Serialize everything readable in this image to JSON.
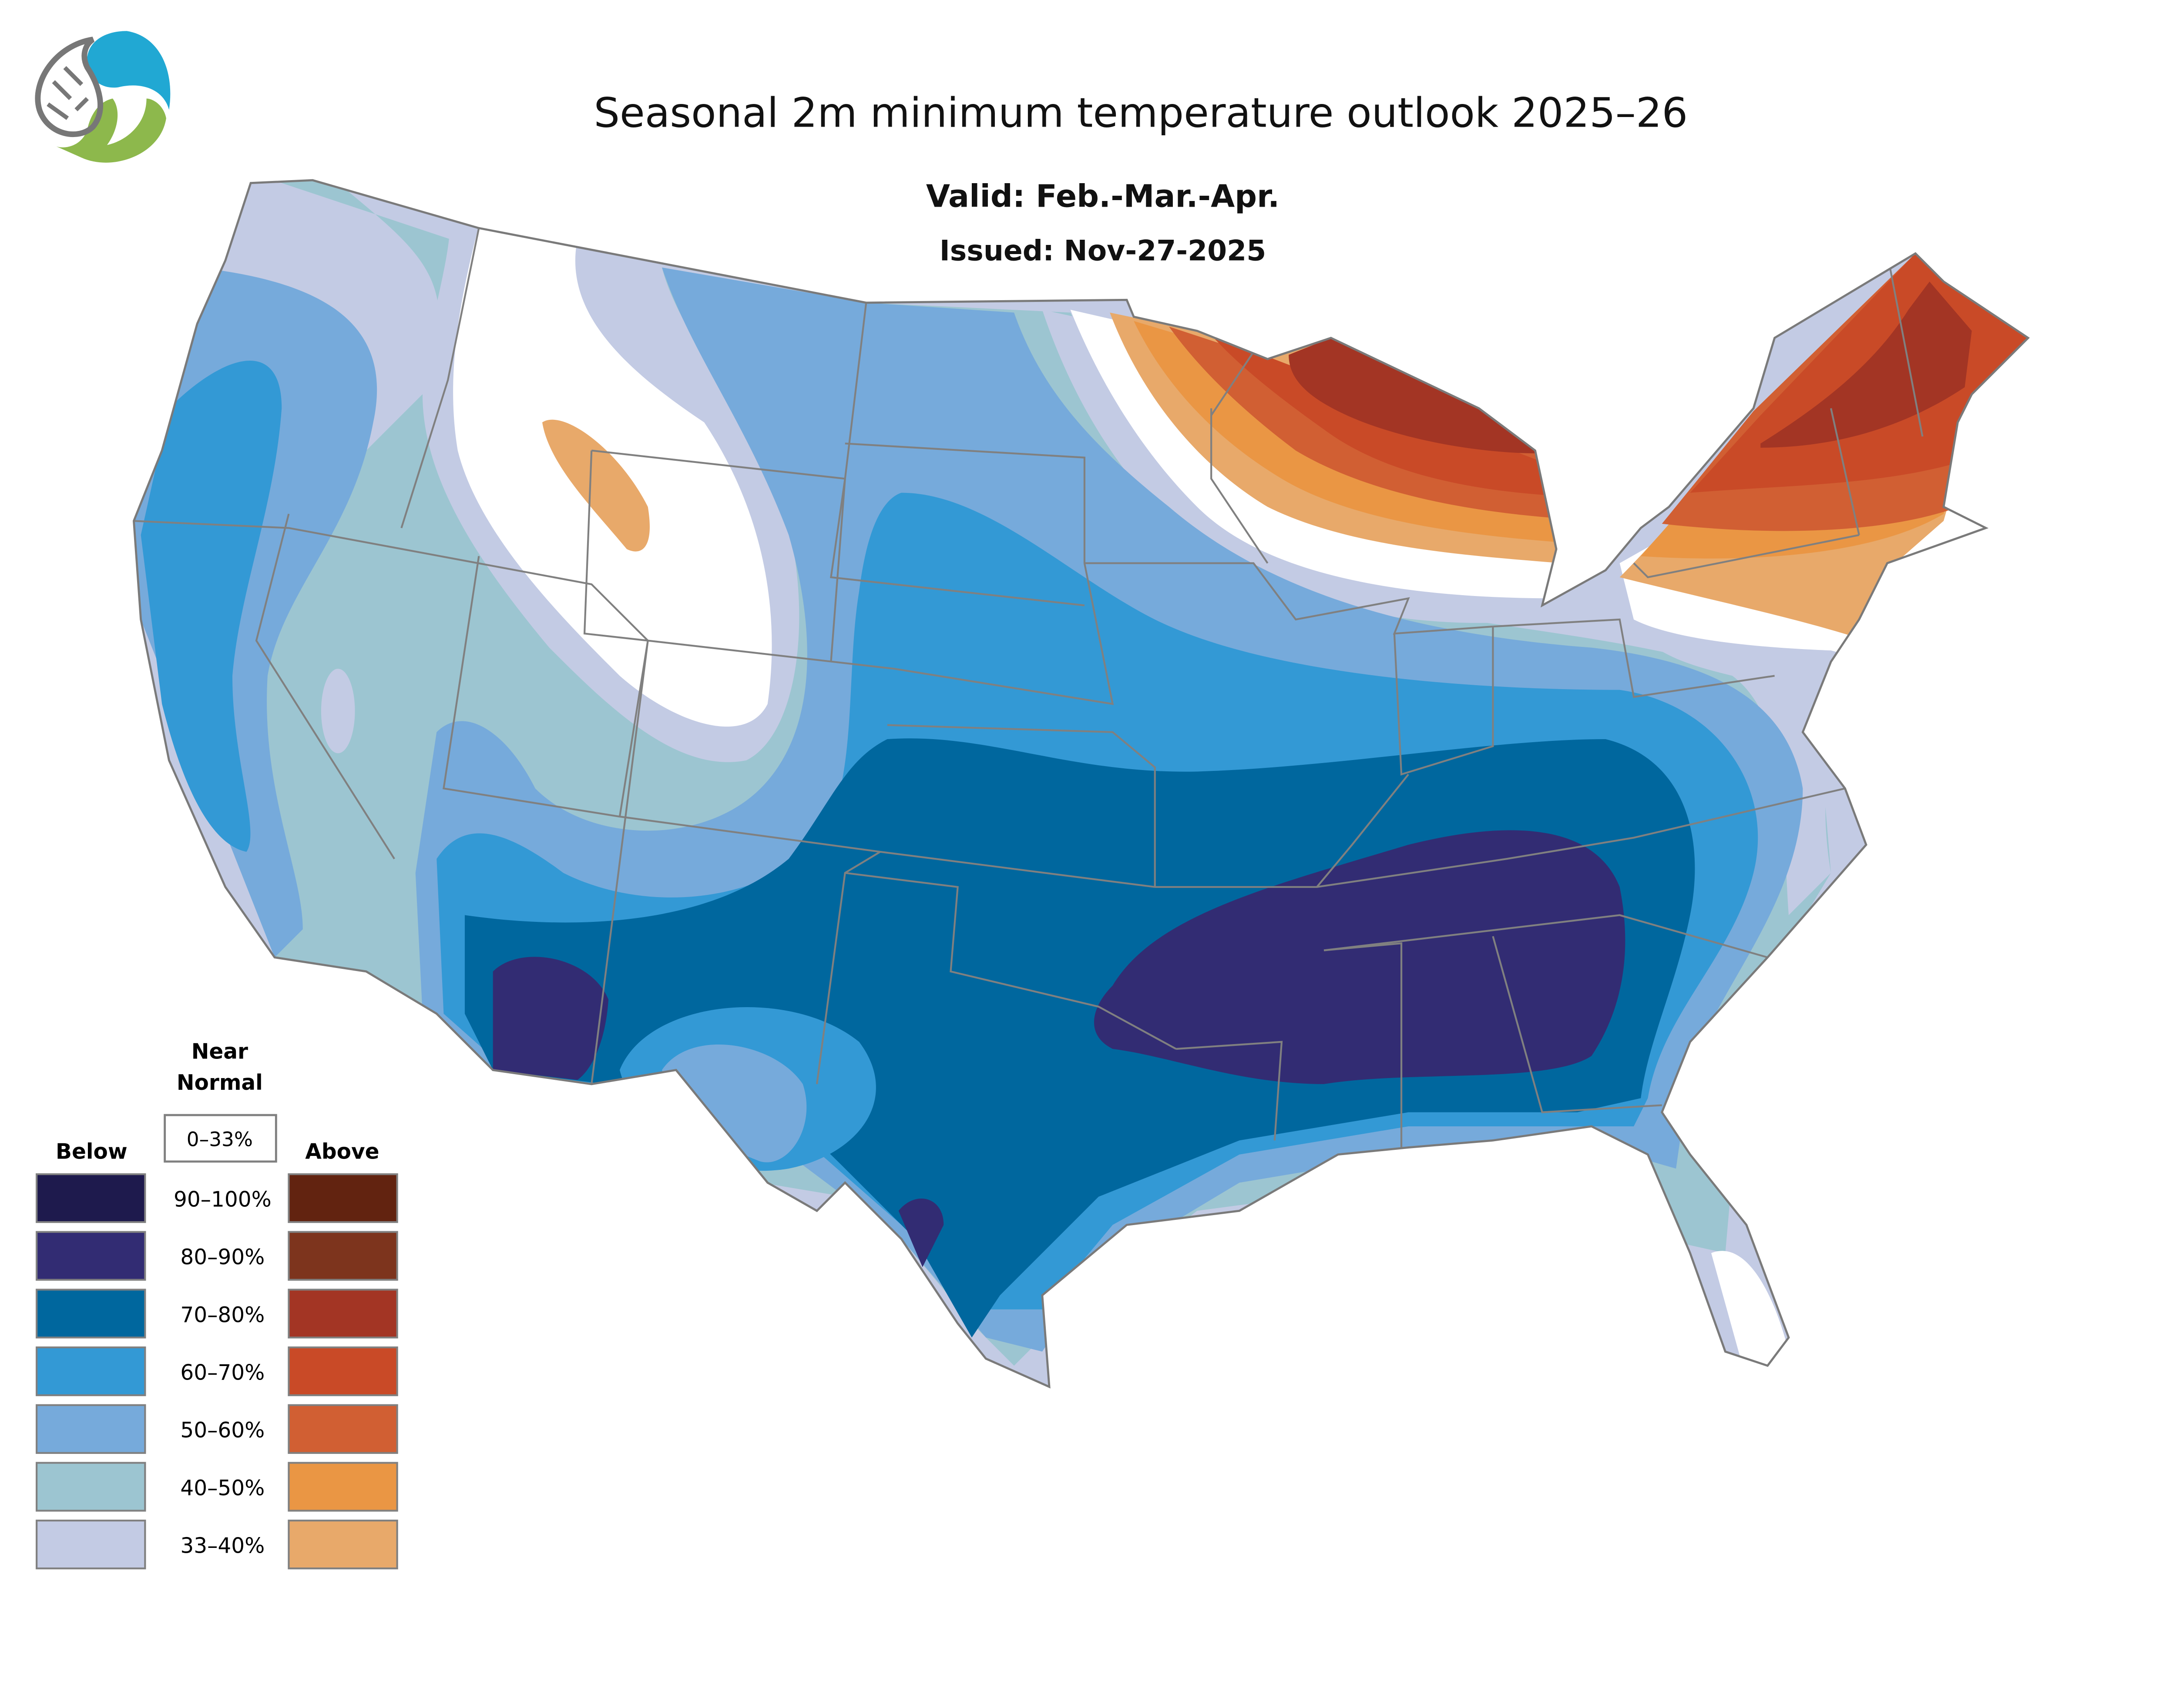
{
  "title": "Seasonal 2m minimum temperature outlook 2025–26",
  "valid": "Valid: Feb.-Mar.-Apr.",
  "issued": "Issued: Nov-27-2025",
  "legend": {
    "near_normal_line1": "Near",
    "near_normal_line2": "Normal",
    "near_normal_range": "0–33%",
    "below_label": "Below",
    "above_label": "Above",
    "rows": [
      {
        "range": "90–100%",
        "below_color": "#1e1a4d",
        "above_color": "#622310"
      },
      {
        "range": "80–90%",
        "below_color": "#322c73",
        "above_color": "#7d341d"
      },
      {
        "range": "70–80%",
        "below_color": "#00679e",
        "above_color": "#a33524"
      },
      {
        "range": "60–70%",
        "below_color": "#3399d5",
        "above_color": "#c94a27"
      },
      {
        "range": "50–60%",
        "below_color": "#76aadb",
        "above_color": "#d15f33"
      },
      {
        "range": "40–50%",
        "below_color": "#9cc5d1",
        "above_color": "#ea9644"
      },
      {
        "range": "33–40%",
        "below_color": "#c3cbe4",
        "above_color": "#e8a96a"
      }
    ]
  }
}
